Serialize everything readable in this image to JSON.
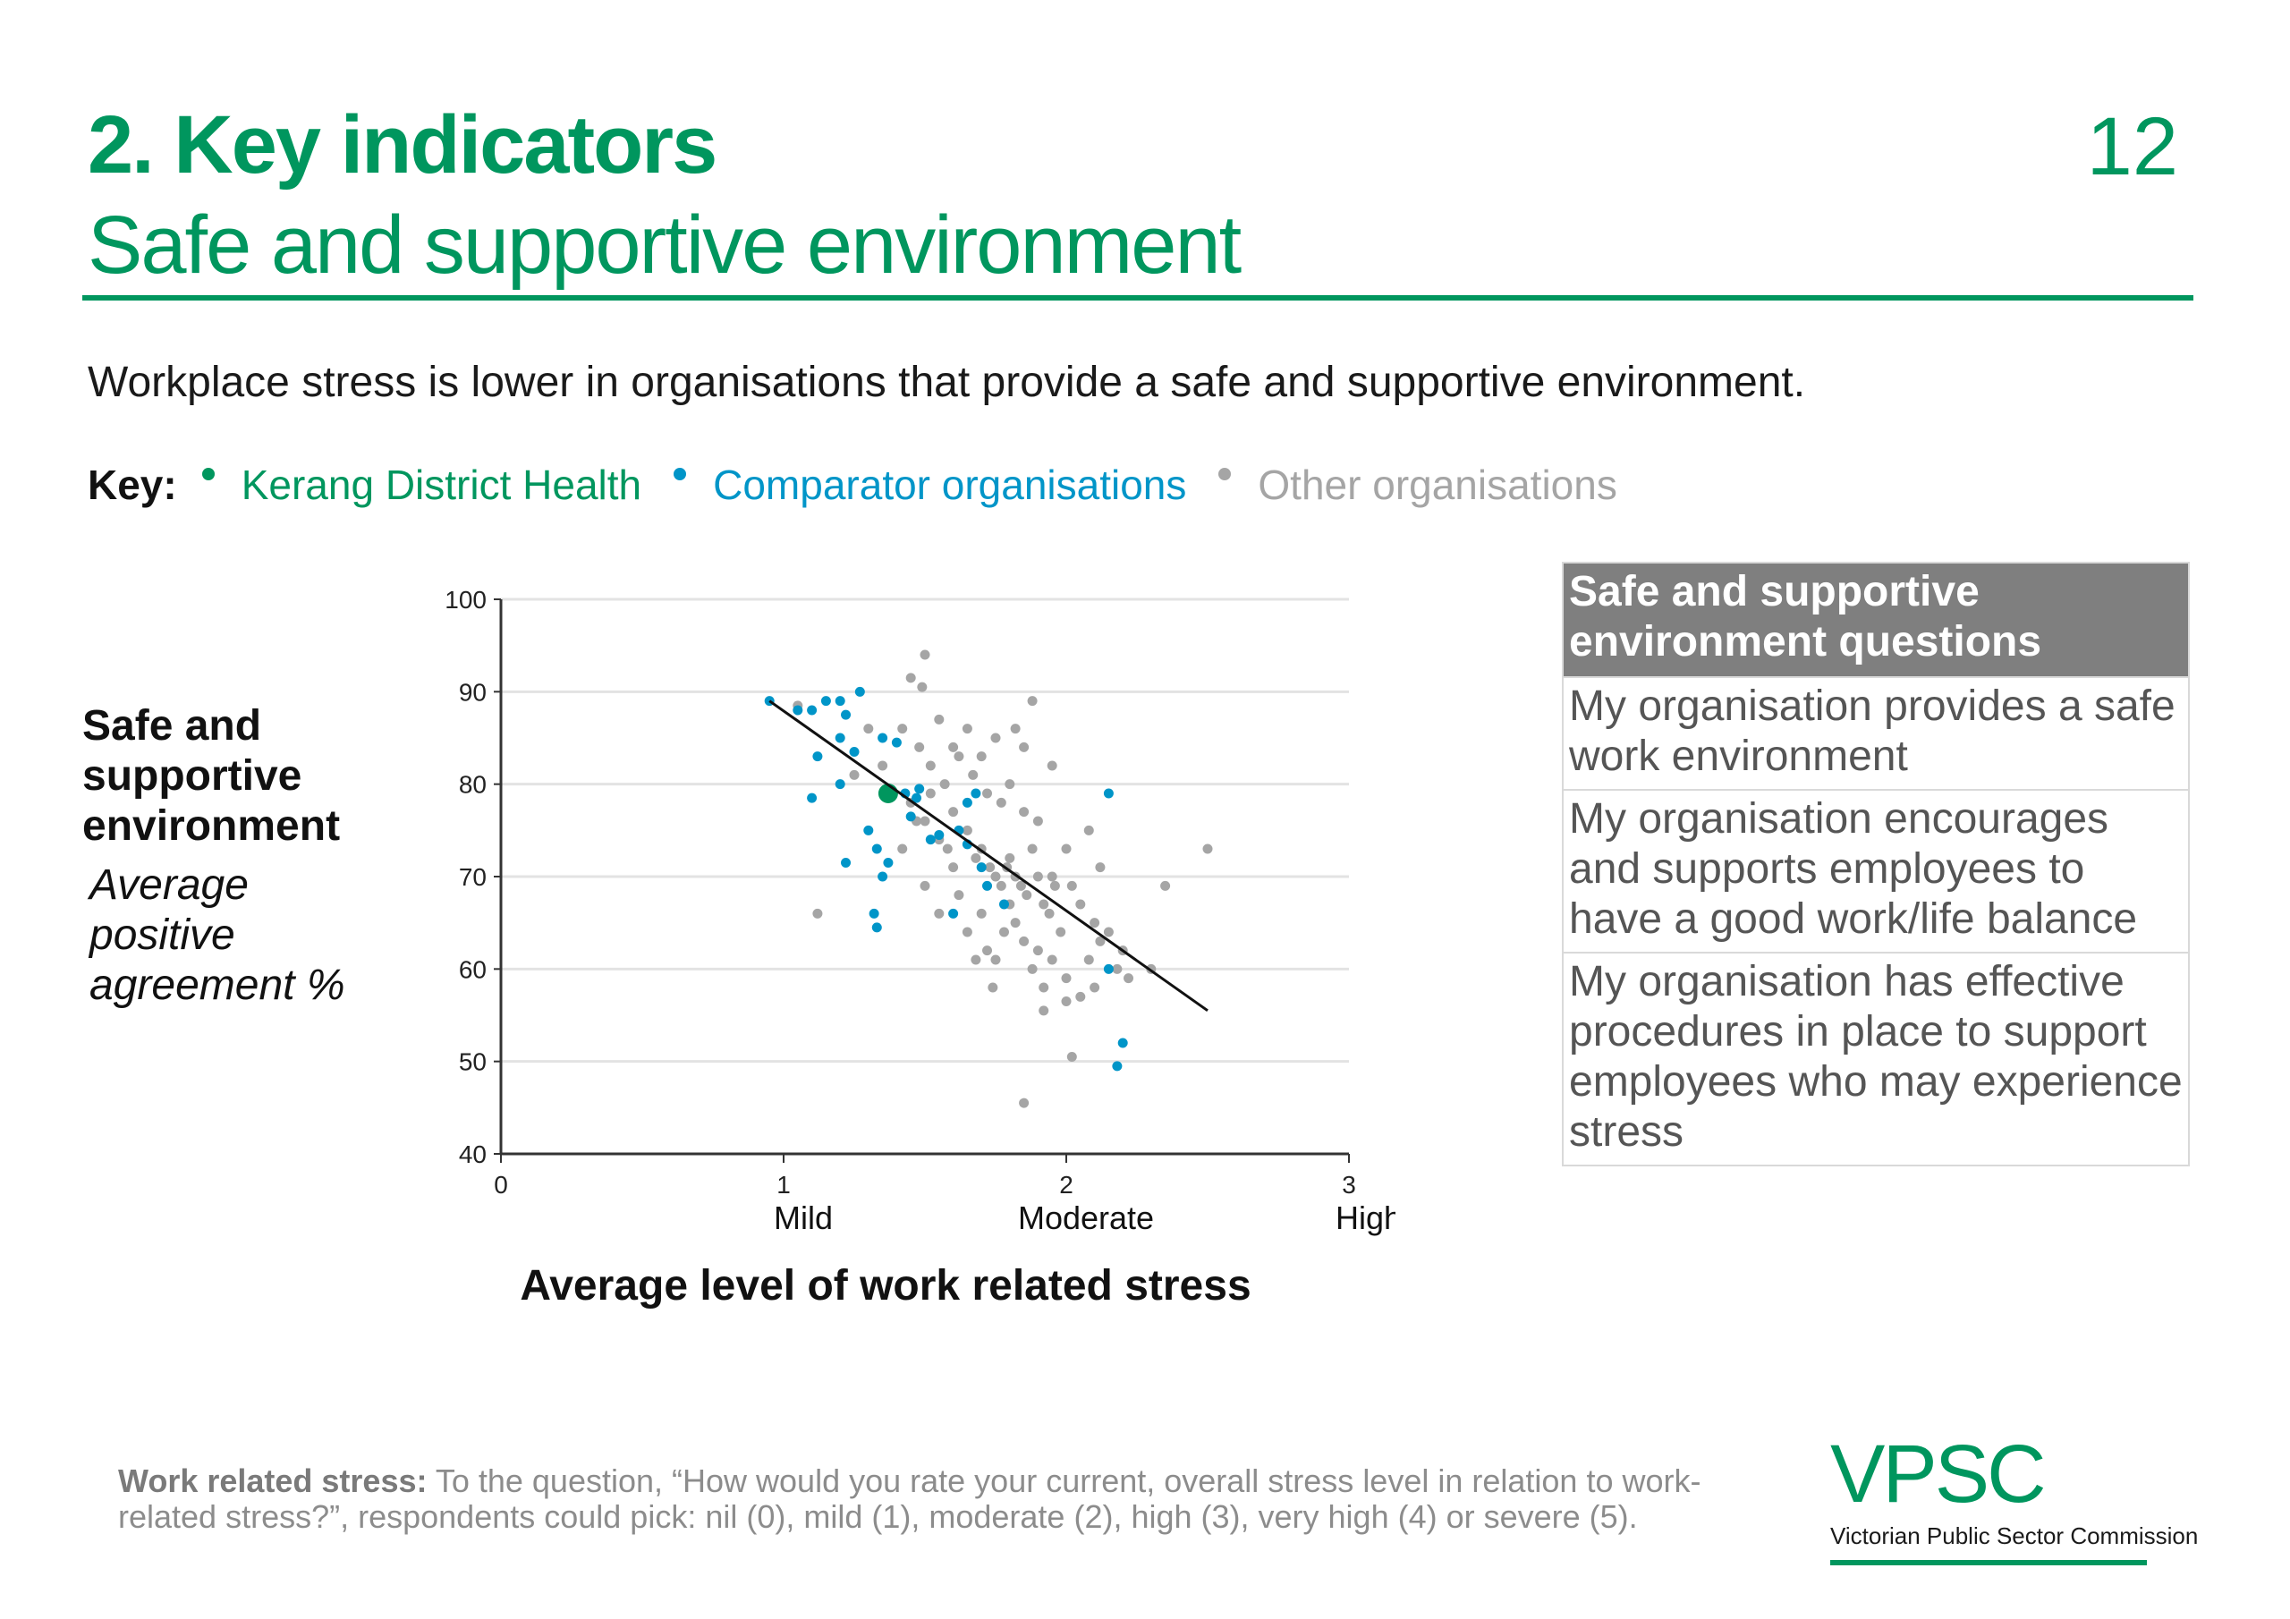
{
  "header": {
    "title": "2. Key indicators",
    "subtitle": "Safe and supportive environment",
    "page_number": "12"
  },
  "intro": "Workplace stress is lower in organisations that provide a safe and supportive environment.",
  "key": {
    "label": "Key:",
    "items": [
      {
        "label": "Kerang District Health",
        "color": "#00965e"
      },
      {
        "label": "Comparator organisations",
        "color": "#0095c8"
      },
      {
        "label": "Other organisations",
        "color": "#a5a5a5"
      }
    ]
  },
  "y_axis_label": {
    "title": "Safe and supportive environment",
    "subtitle": "Average positive agreement %"
  },
  "question_table": {
    "header": "Safe and supportive environment questions",
    "rows": [
      "My organisation provides a safe work environment",
      "My organisation encourages and supports employees to have a good work/life balance",
      "My organisation has effective procedures in place to support employees who may experience stress"
    ]
  },
  "footnote": {
    "bold": "Work related stress:",
    "text": " To the question, “How would you rate your current, overall stress level in relation to work-related stress?”, respondents could pick: nil (0), mild (1), moderate (2), high (3), very high (4) or severe (5)."
  },
  "logo": {
    "mark": "VPSC",
    "name": "Victorian Public Sector Commission"
  },
  "chart_data": {
    "type": "scatter",
    "xlabel": "Average level of work related stress",
    "ylabel": "Safe and supportive environment",
    "xlim": [
      0,
      3
    ],
    "ylim": [
      40,
      100
    ],
    "x_ticks": [
      0,
      1,
      2,
      3
    ],
    "x_tick_labels": [
      "0",
      "1",
      "2",
      "3"
    ],
    "x_category_labels": [
      {
        "x": 1,
        "label": "Mild"
      },
      {
        "x": 2,
        "label": "Moderate"
      },
      {
        "x": 3,
        "label": "High"
      }
    ],
    "y_ticks": [
      40,
      50,
      60,
      70,
      80,
      90,
      100
    ],
    "grid": true,
    "trendline": [
      [
        0.95,
        89
      ],
      [
        2.5,
        55.5
      ]
    ],
    "series": [
      {
        "color": "#a5a5a5",
        "points": [
          [
            1.05,
            88.5
          ],
          [
            1.45,
            91.5
          ],
          [
            1.49,
            90.5
          ],
          [
            1.5,
            94
          ],
          [
            1.55,
            87
          ],
          [
            1.6,
            84
          ],
          [
            1.65,
            86
          ],
          [
            1.7,
            83
          ],
          [
            1.75,
            85
          ],
          [
            1.82,
            86
          ],
          [
            1.85,
            84
          ],
          [
            1.88,
            89
          ],
          [
            1.95,
            82
          ],
          [
            1.42,
            86
          ],
          [
            1.48,
            84
          ],
          [
            1.52,
            82
          ],
          [
            1.57,
            80
          ],
          [
            1.62,
            83
          ],
          [
            1.67,
            81
          ],
          [
            1.72,
            79
          ],
          [
            1.77,
            78
          ],
          [
            1.8,
            80
          ],
          [
            1.85,
            77
          ],
          [
            1.9,
            76
          ],
          [
            1.45,
            78
          ],
          [
            1.5,
            76
          ],
          [
            1.55,
            74
          ],
          [
            1.6,
            77
          ],
          [
            1.65,
            75
          ],
          [
            1.68,
            72
          ],
          [
            1.7,
            73
          ],
          [
            1.73,
            71
          ],
          [
            1.75,
            70
          ],
          [
            1.77,
            69
          ],
          [
            1.79,
            71
          ],
          [
            1.8,
            72
          ],
          [
            1.82,
            70
          ],
          [
            1.84,
            69
          ],
          [
            1.86,
            68
          ],
          [
            1.88,
            73
          ],
          [
            1.9,
            70
          ],
          [
            1.92,
            67
          ],
          [
            1.94,
            66
          ],
          [
            1.96,
            69
          ],
          [
            1.98,
            64
          ],
          [
            2.0,
            73
          ],
          [
            2.02,
            69
          ],
          [
            2.05,
            67
          ],
          [
            2.08,
            75
          ],
          [
            2.1,
            65
          ],
          [
            2.12,
            63
          ],
          [
            2.15,
            64
          ],
          [
            2.18,
            60
          ],
          [
            2.2,
            62
          ],
          [
            2.22,
            59
          ],
          [
            1.5,
            69
          ],
          [
            1.55,
            66
          ],
          [
            1.6,
            71
          ],
          [
            1.62,
            68
          ],
          [
            1.65,
            64
          ],
          [
            1.7,
            66
          ],
          [
            1.72,
            62
          ],
          [
            1.75,
            61
          ],
          [
            1.78,
            64
          ],
          [
            1.8,
            67
          ],
          [
            1.82,
            65
          ],
          [
            1.85,
            63
          ],
          [
            1.88,
            60
          ],
          [
            1.9,
            62
          ],
          [
            1.92,
            58
          ],
          [
            1.95,
            61
          ],
          [
            2.0,
            59
          ],
          [
            2.05,
            57
          ],
          [
            2.1,
            58
          ],
          [
            1.92,
            55.5
          ],
          [
            2.0,
            56.5
          ],
          [
            2.3,
            60
          ],
          [
            2.35,
            69
          ],
          [
            2.5,
            73
          ],
          [
            1.12,
            66
          ],
          [
            1.42,
            73
          ],
          [
            1.47,
            76
          ],
          [
            1.52,
            79
          ],
          [
            1.58,
            73
          ],
          [
            1.68,
            61
          ],
          [
            1.74,
            58
          ],
          [
            1.85,
            45.5
          ],
          [
            2.02,
            50.5
          ],
          [
            1.35,
            82
          ],
          [
            1.25,
            81
          ],
          [
            1.3,
            86
          ],
          [
            2.12,
            71
          ],
          [
            1.95,
            70
          ],
          [
            2.08,
            61
          ]
        ]
      },
      {
        "name": "Comparator organisations",
        "color": "#0095c8",
        "points": [
          [
            0.95,
            89
          ],
          [
            1.05,
            88
          ],
          [
            1.1,
            88
          ],
          [
            1.15,
            89
          ],
          [
            1.2,
            89
          ],
          [
            1.22,
            87.5
          ],
          [
            1.27,
            90
          ],
          [
            1.12,
            83
          ],
          [
            1.2,
            85
          ],
          [
            1.25,
            83.5
          ],
          [
            1.1,
            78.5
          ],
          [
            1.2,
            80
          ],
          [
            1.35,
            85
          ],
          [
            1.4,
            84.5
          ],
          [
            1.43,
            79
          ],
          [
            1.48,
            79.5
          ],
          [
            1.3,
            75
          ],
          [
            1.33,
            73
          ],
          [
            1.22,
            71.5
          ],
          [
            1.35,
            70
          ],
          [
            1.37,
            71.5
          ],
          [
            1.32,
            66
          ],
          [
            1.33,
            64.5
          ],
          [
            1.52,
            74
          ],
          [
            1.55,
            74.5
          ],
          [
            1.62,
            75
          ],
          [
            1.65,
            73.5
          ],
          [
            1.7,
            71
          ],
          [
            1.72,
            69
          ],
          [
            1.78,
            67
          ],
          [
            1.6,
            66
          ],
          [
            1.65,
            78
          ],
          [
            1.68,
            79
          ],
          [
            2.15,
            79
          ],
          [
            2.15,
            60
          ],
          [
            2.2,
            52
          ],
          [
            2.18,
            49.5
          ],
          [
            1.45,
            76.5
          ],
          [
            1.47,
            78.5
          ]
        ]
      },
      {
        "name": "Kerang District Health",
        "color": "#00965e",
        "points": [
          [
            1.37,
            79
          ]
        ]
      }
    ]
  }
}
